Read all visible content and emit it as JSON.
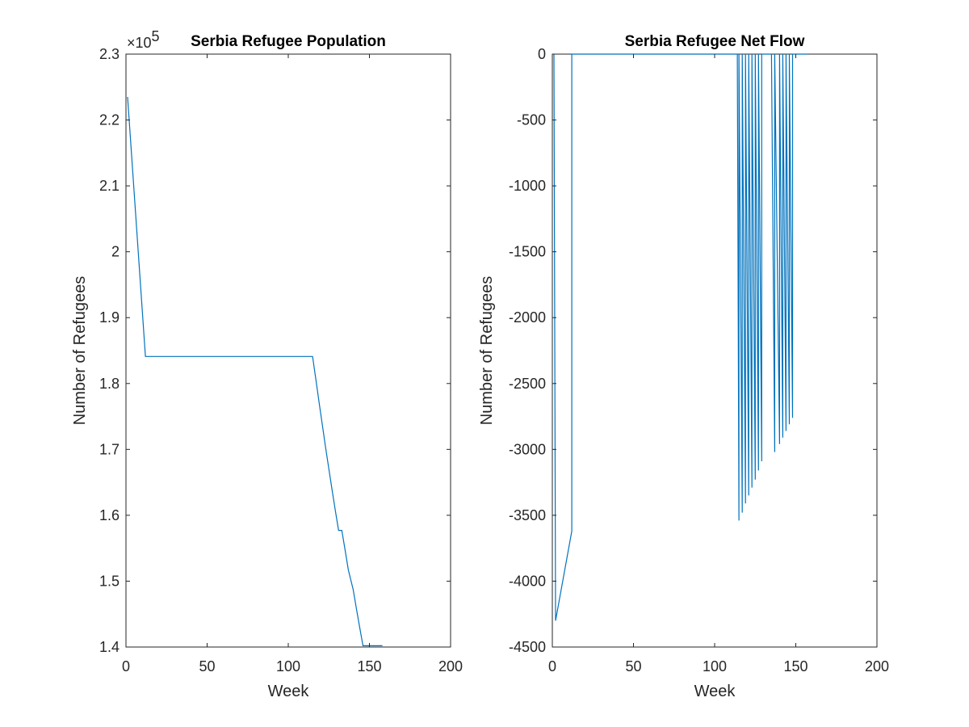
{
  "chart_data": [
    {
      "type": "line",
      "title": "Serbia Refugee Population",
      "xlabel": "Week",
      "ylabel": "Number of Refugees",
      "exponent_label": {
        "base": "×10",
        "power": "5"
      },
      "xlim": [
        0,
        200
      ],
      "ylim": [
        1.4,
        2.3
      ],
      "y_scale_factor": 100000,
      "xticks": [
        "0",
        "50",
        "100",
        "150",
        "200"
      ],
      "yticks": [
        "1.4",
        "1.5",
        "1.6",
        "1.7",
        "1.8",
        "1.9",
        "2",
        "2.1",
        "2.2",
        "2.3"
      ],
      "grid": false,
      "line_color": "#0072BD",
      "series": [
        {
          "x": [
            1,
            12,
            115,
            117,
            117,
            119,
            119,
            121,
            121,
            123,
            123,
            125,
            125,
            127,
            127,
            129,
            129,
            131,
            131,
            133,
            133,
            135,
            135,
            137,
            137,
            140,
            140,
            142,
            142,
            144,
            144,
            146,
            146,
            148,
            148,
            150,
            150,
            152,
            152,
            154,
            154,
            156,
            156,
            158
          ],
          "y": [
            2.235,
            1.841,
            1.841,
            1.806,
            1.806,
            1.771,
            1.771,
            1.737,
            1.737,
            1.703,
            1.703,
            1.67,
            1.67,
            1.638,
            1.638,
            1.607,
            1.607,
            1.577,
            1.577,
            1.577,
            1.577,
            1.547,
            1.547,
            1.517,
            1.517,
            1.487,
            1.487,
            1.458,
            1.458,
            1.43,
            1.43,
            1.402,
            1.402,
            1.402,
            1.402,
            1.402,
            1.402,
            1.402,
            1.402,
            1.402,
            1.402,
            1.402,
            1.402,
            1.402
          ]
        }
      ]
    },
    {
      "type": "line",
      "title": "Serbia Refugee Net Flow",
      "xlabel": "Week",
      "ylabel": "Number of Refugees",
      "xlim": [
        0,
        200
      ],
      "ylim": [
        -4500,
        0
      ],
      "xticks": [
        "0",
        "50",
        "100",
        "150",
        "200"
      ],
      "yticks": [
        "-4500",
        "-4000",
        "-3500",
        "-3000",
        "-2500",
        "-2000",
        "-1500",
        "-1000",
        "-500",
        "0"
      ],
      "grid": false,
      "line_color": "#0072BD",
      "series": [
        {
          "x": [
            1,
            2,
            12,
            12,
            114,
            115,
            115,
            117,
            117,
            119,
            119,
            121,
            121,
            123,
            123,
            125,
            125,
            127,
            127,
            129,
            129,
            131,
            131,
            133,
            133,
            135,
            135,
            137,
            137,
            140,
            140,
            142,
            142,
            144,
            144,
            146,
            146,
            148,
            148,
            150,
            150,
            152,
            152,
            154,
            154,
            156,
            156,
            157
          ],
          "y": [
            0,
            -4300,
            -3620,
            0,
            0,
            -3540,
            0,
            -3480,
            0,
            -3410,
            0,
            -3350,
            0,
            -3290,
            0,
            -3230,
            0,
            -3160,
            0,
            -3090,
            0,
            0,
            0,
            0,
            0,
            0,
            0,
            -3020,
            0,
            -2960,
            0,
            -2910,
            0,
            -2860,
            0,
            -2810,
            0,
            -2760,
            0,
            0,
            0,
            0,
            0,
            0,
            0,
            0,
            0,
            0
          ]
        }
      ]
    }
  ]
}
